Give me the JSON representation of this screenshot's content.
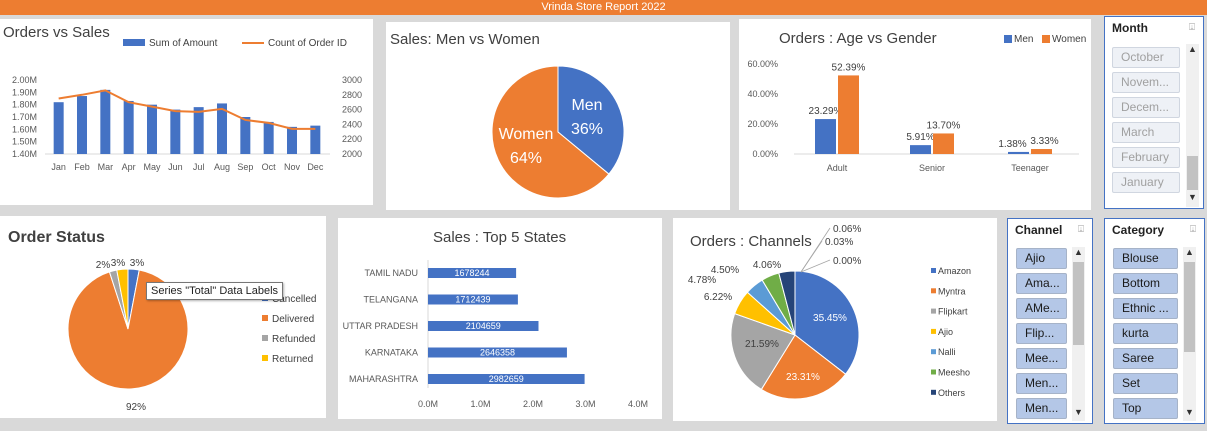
{
  "report_title": "Vrinda Store Report 2022",
  "charts": {
    "orders_sales": {
      "title": "Orders vs Sales",
      "legend_bar": "Sum of Amount",
      "legend_line": "Count of Order ID",
      "y_left_ticks": [
        "2.00M",
        "1.90M",
        "1.80M",
        "1.70M",
        "1.60M",
        "1.50M",
        "1.40M"
      ],
      "y_right_ticks": [
        "3000",
        "2800",
        "2600",
        "2400",
        "2200",
        "2000"
      ]
    },
    "men_women": {
      "title": "Sales: Men vs Women",
      "men_label": "Men",
      "men_pct": "36%",
      "women_label": "Women",
      "women_pct": "64%"
    },
    "age_gender": {
      "title": "Orders : Age vs Gender",
      "legend_men": "Men",
      "legend_women": "Women",
      "y_ticks": [
        "60.00%",
        "40.00%",
        "20.00%",
        "0.00%"
      ]
    },
    "order_status": {
      "title": "Order Status",
      "tooltip": "Series \"Total\" Data Labels",
      "label_92": "92%",
      "label_2": "2%",
      "label_3a": "3%",
      "label_3b": "3%"
    },
    "top_states": {
      "title": "Sales : Top 5 States",
      "x_ticks": [
        "0.0M",
        "1.0M",
        "2.0M",
        "3.0M",
        "4.0M"
      ]
    },
    "channels": {
      "title": "Orders : Channels"
    }
  },
  "chart_data": [
    {
      "type": "bar",
      "title": "Orders vs Sales",
      "categories": [
        "Jan",
        "Feb",
        "Mar",
        "Apr",
        "May",
        "Jun",
        "Jul",
        "Aug",
        "Sep",
        "Oct",
        "Nov",
        "Dec"
      ],
      "series": [
        {
          "name": "Sum of Amount",
          "values": [
            1.82,
            1.87,
            1.92,
            1.83,
            1.8,
            1.76,
            1.78,
            1.81,
            1.7,
            1.66,
            1.62,
            1.63
          ]
        },
        {
          "name": "Count of Order ID",
          "values": [
            2750,
            2800,
            2860,
            2700,
            2640,
            2580,
            2570,
            2610,
            2460,
            2420,
            2340,
            2340
          ]
        }
      ],
      "ylim": [
        1.4,
        2.0
      ],
      "y2lim": [
        2000,
        3000
      ],
      "y_unit": "M",
      "legend": "top"
    },
    {
      "type": "pie",
      "title": "Sales: Men vs Women",
      "categories": [
        "Men",
        "Women"
      ],
      "values": [
        36,
        64
      ],
      "colors": [
        "#4472c4",
        "#ed7d31"
      ]
    },
    {
      "type": "bar",
      "title": "Orders : Age vs Gender",
      "categories": [
        "Adult",
        "Senior",
        "Teenager"
      ],
      "series": [
        {
          "name": "Men",
          "values": [
            23.29,
            5.91,
            1.38
          ],
          "labels": [
            "23.29%",
            "5.91%",
            "1.38%"
          ]
        },
        {
          "name": "Women",
          "values": [
            52.39,
            13.7,
            3.33
          ],
          "labels": [
            "52.39%",
            "13.70%",
            "3.33%"
          ]
        }
      ],
      "ylim": [
        0,
        60
      ],
      "legend": "top-right"
    },
    {
      "type": "pie",
      "title": "Order Status",
      "categories": [
        "Cancelled",
        "Delivered",
        "Refunded",
        "Returned"
      ],
      "values": [
        3,
        92,
        2,
        3
      ],
      "colors": [
        "#4472c4",
        "#ed7d31",
        "#a5a5a5",
        "#ffc000"
      ],
      "legend": "right"
    },
    {
      "type": "bar",
      "title": "Sales : Top 5 States",
      "orientation": "horizontal",
      "categories": [
        "TAMIL NADU",
        "TELANGANA",
        "UTTAR PRADESH",
        "KARNATAKA",
        "MAHARASHTRA"
      ],
      "values": [
        1678244,
        1712439,
        2104659,
        2646358,
        2982659
      ],
      "labels": [
        "1678244",
        "1712439",
        "2104659",
        "2646358",
        "2982659"
      ],
      "xlim": [
        0,
        4000000
      ]
    },
    {
      "type": "pie",
      "title": "Orders : Channels",
      "categories": [
        "Amazon",
        "Myntra",
        "Flipkart",
        "Ajio",
        "Nalli",
        "Meesho",
        "Others"
      ],
      "values": [
        35.45,
        23.31,
        21.59,
        6.22,
        4.78,
        4.5,
        4.06
      ],
      "labels": [
        "35.45%",
        "23.31%",
        "21.59%",
        "6.22%",
        "4.78%",
        "4.50%",
        "4.06%"
      ],
      "extra_labels": [
        "0.06%",
        "0.03%",
        "0.00%"
      ],
      "colors": [
        "#4472c4",
        "#ed7d31",
        "#a5a5a5",
        "#ffc000",
        "#5b9bd5",
        "#70ad47",
        "#264478"
      ],
      "legend": "right"
    }
  ],
  "slicers": {
    "month": {
      "title": "Month",
      "items": [
        "October",
        "Novem...",
        "Decem...",
        "March",
        "February",
        "January"
      ]
    },
    "channel": {
      "title": "Channel",
      "items": [
        "Ajio",
        "Ama...",
        "AMe...",
        "Flip...",
        "Mee...",
        "Men...",
        "Men..."
      ]
    },
    "category": {
      "title": "Category",
      "items": [
        "Blouse",
        "Bottom",
        "Ethnic ...",
        "kurta",
        "Saree",
        "Set",
        "Top"
      ]
    }
  }
}
